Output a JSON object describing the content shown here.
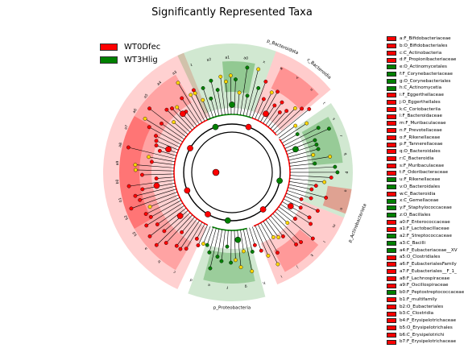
{
  "chart_data": {
    "type": "cladogram",
    "title": "Significantly Represented Taxa",
    "colors": {
      "WT0Dfec": "#ff0000",
      "WT3Hlig": "#008000"
    },
    "legend": [
      {
        "name": "WT0Dfec",
        "color": "#ff0000"
      },
      {
        "name": "WT3Hlig",
        "color": "#008000"
      }
    ],
    "clade_labels": [
      {
        "text": "p_Bacteroidota",
        "color": "WT0Dfec"
      },
      {
        "text": "c_Bacteroidia",
        "color": "WT0Dfec"
      },
      {
        "text": "p_Proteobacteria",
        "color": "WT3Hlig"
      },
      {
        "text": "p_Actinobacteriota",
        "color": "WT3Hlig"
      }
    ],
    "sector_letters": [
      "a3",
      "z",
      "a2",
      "a1",
      "a0",
      "x",
      "w",
      "v",
      "u",
      "t",
      "s",
      "r",
      "q",
      "p",
      "o",
      "n",
      "m",
      "l",
      "k",
      "j",
      "i",
      "h",
      "g",
      "f",
      "e",
      "d",
      "c",
      "b",
      "a",
      "b3",
      "b2",
      "b1",
      "b0",
      "a9",
      "a8",
      "a7",
      "a6",
      "a5",
      "a4"
    ],
    "taxa": [
      {
        "key": "a",
        "name": "F_Bifidobacteriaceae",
        "color": "WT0Dfec"
      },
      {
        "key": "b",
        "name": "O_Bifidobacteriales",
        "color": "WT0Dfec"
      },
      {
        "key": "c",
        "name": "C_Actinobacteria",
        "color": "WT0Dfec"
      },
      {
        "key": "d",
        "name": "F_Propionibacteriaceae",
        "color": "WT0Dfec"
      },
      {
        "key": "e",
        "name": "O_Actinomycetales",
        "color": "WT3Hlig"
      },
      {
        "key": "f",
        "name": "F_Corynebacteriaceae",
        "color": "WT3Hlig"
      },
      {
        "key": "g",
        "name": "O_Corynebacteriales",
        "color": "WT3Hlig"
      },
      {
        "key": "h",
        "name": "C_Actinomycetia",
        "color": "WT3Hlig"
      },
      {
        "key": "i",
        "name": "F_Eggerthellaceae",
        "color": "WT0Dfec"
      },
      {
        "key": "j",
        "name": "O_Eggerthellales",
        "color": "WT0Dfec"
      },
      {
        "key": "k",
        "name": "C_Coriobacteriia",
        "color": "WT0Dfec"
      },
      {
        "key": "l",
        "name": "F_Bacteroidaceae",
        "color": "WT0Dfec"
      },
      {
        "key": "m",
        "name": "F_Muribaculaceae",
        "color": "WT0Dfec"
      },
      {
        "key": "n",
        "name": "F_Prevotellaceae",
        "color": "WT0Dfec"
      },
      {
        "key": "o",
        "name": "F_Rikenellaceae",
        "color": "WT0Dfec"
      },
      {
        "key": "p",
        "name": "F_Tannerellaceae",
        "color": "WT0Dfec"
      },
      {
        "key": "q",
        "name": "O_Bacteroidales",
        "color": "WT0Dfec"
      },
      {
        "key": "r",
        "name": "C_Bacteroidia",
        "color": "WT0Dfec"
      },
      {
        "key": "s",
        "name": "F_Muribaculaceae",
        "color": "WT0Dfec"
      },
      {
        "key": "t",
        "name": "F_Odoribacteraceae",
        "color": "WT0Dfec"
      },
      {
        "key": "u",
        "name": "F_Rikenellaceae",
        "color": "WT3Hlig"
      },
      {
        "key": "v",
        "name": "O_Bacteroidales",
        "color": "WT3Hlig"
      },
      {
        "key": "w",
        "name": "C_Bacteroidia",
        "color": "WT0Dfec"
      },
      {
        "key": "x",
        "name": "C_Gemellaceae",
        "color": "WT3Hlig"
      },
      {
        "key": "y",
        "name": "F_Staphylococcaceae",
        "color": "WT3Hlig"
      },
      {
        "key": "z",
        "name": "O_Bacillales",
        "color": "WT3Hlig"
      },
      {
        "key": "a0",
        "name": "F_Enterococcaceae",
        "color": "WT0Dfec"
      },
      {
        "key": "a1",
        "name": "F_Lactobacillaceae",
        "color": "WT0Dfec"
      },
      {
        "key": "a2",
        "name": "F_Streptococcaceae",
        "color": "WT3Hlig"
      },
      {
        "key": "a3",
        "name": "C_Bacilli",
        "color": "WT3Hlig"
      },
      {
        "key": "a4",
        "name": "F_Eubacteriaceae__XV",
        "color": "WT3Hlig"
      },
      {
        "key": "a5",
        "name": "O_Clostridiales",
        "color": "WT0Dfec"
      },
      {
        "key": "a6",
        "name": "F_EubacterialesFamily",
        "color": "WT0Dfec"
      },
      {
        "key": "a7",
        "name": "F_Eubacteriales__F_1_",
        "color": "WT0Dfec"
      },
      {
        "key": "a8",
        "name": "F_Lachnospiraceae",
        "color": "WT0Dfec"
      },
      {
        "key": "a9",
        "name": "F_Oscillospiraceae",
        "color": "WT0Dfec"
      },
      {
        "key": "b0",
        "name": "F_Peptostreptococcaceae",
        "color": "WT3Hlig"
      },
      {
        "key": "b1",
        "name": "F_multifamily",
        "color": "WT0Dfec"
      },
      {
        "key": "b2",
        "name": "O_Eubacteriales",
        "color": "WT0Dfec"
      },
      {
        "key": "b3",
        "name": "C_Clostridia",
        "color": "WT0Dfec"
      },
      {
        "key": "b4",
        "name": "F_Erysipelotrichaceae",
        "color": "WT0Dfec"
      },
      {
        "key": "b5",
        "name": "O_Erysipelotrichales",
        "color": "WT0Dfec"
      },
      {
        "key": "b6",
        "name": "C_Erysipelotrichi",
        "color": "WT0Dfec"
      },
      {
        "key": "b7",
        "name": "F_Erysipelotrichaceae",
        "color": "WT0Dfec"
      }
    ]
  }
}
